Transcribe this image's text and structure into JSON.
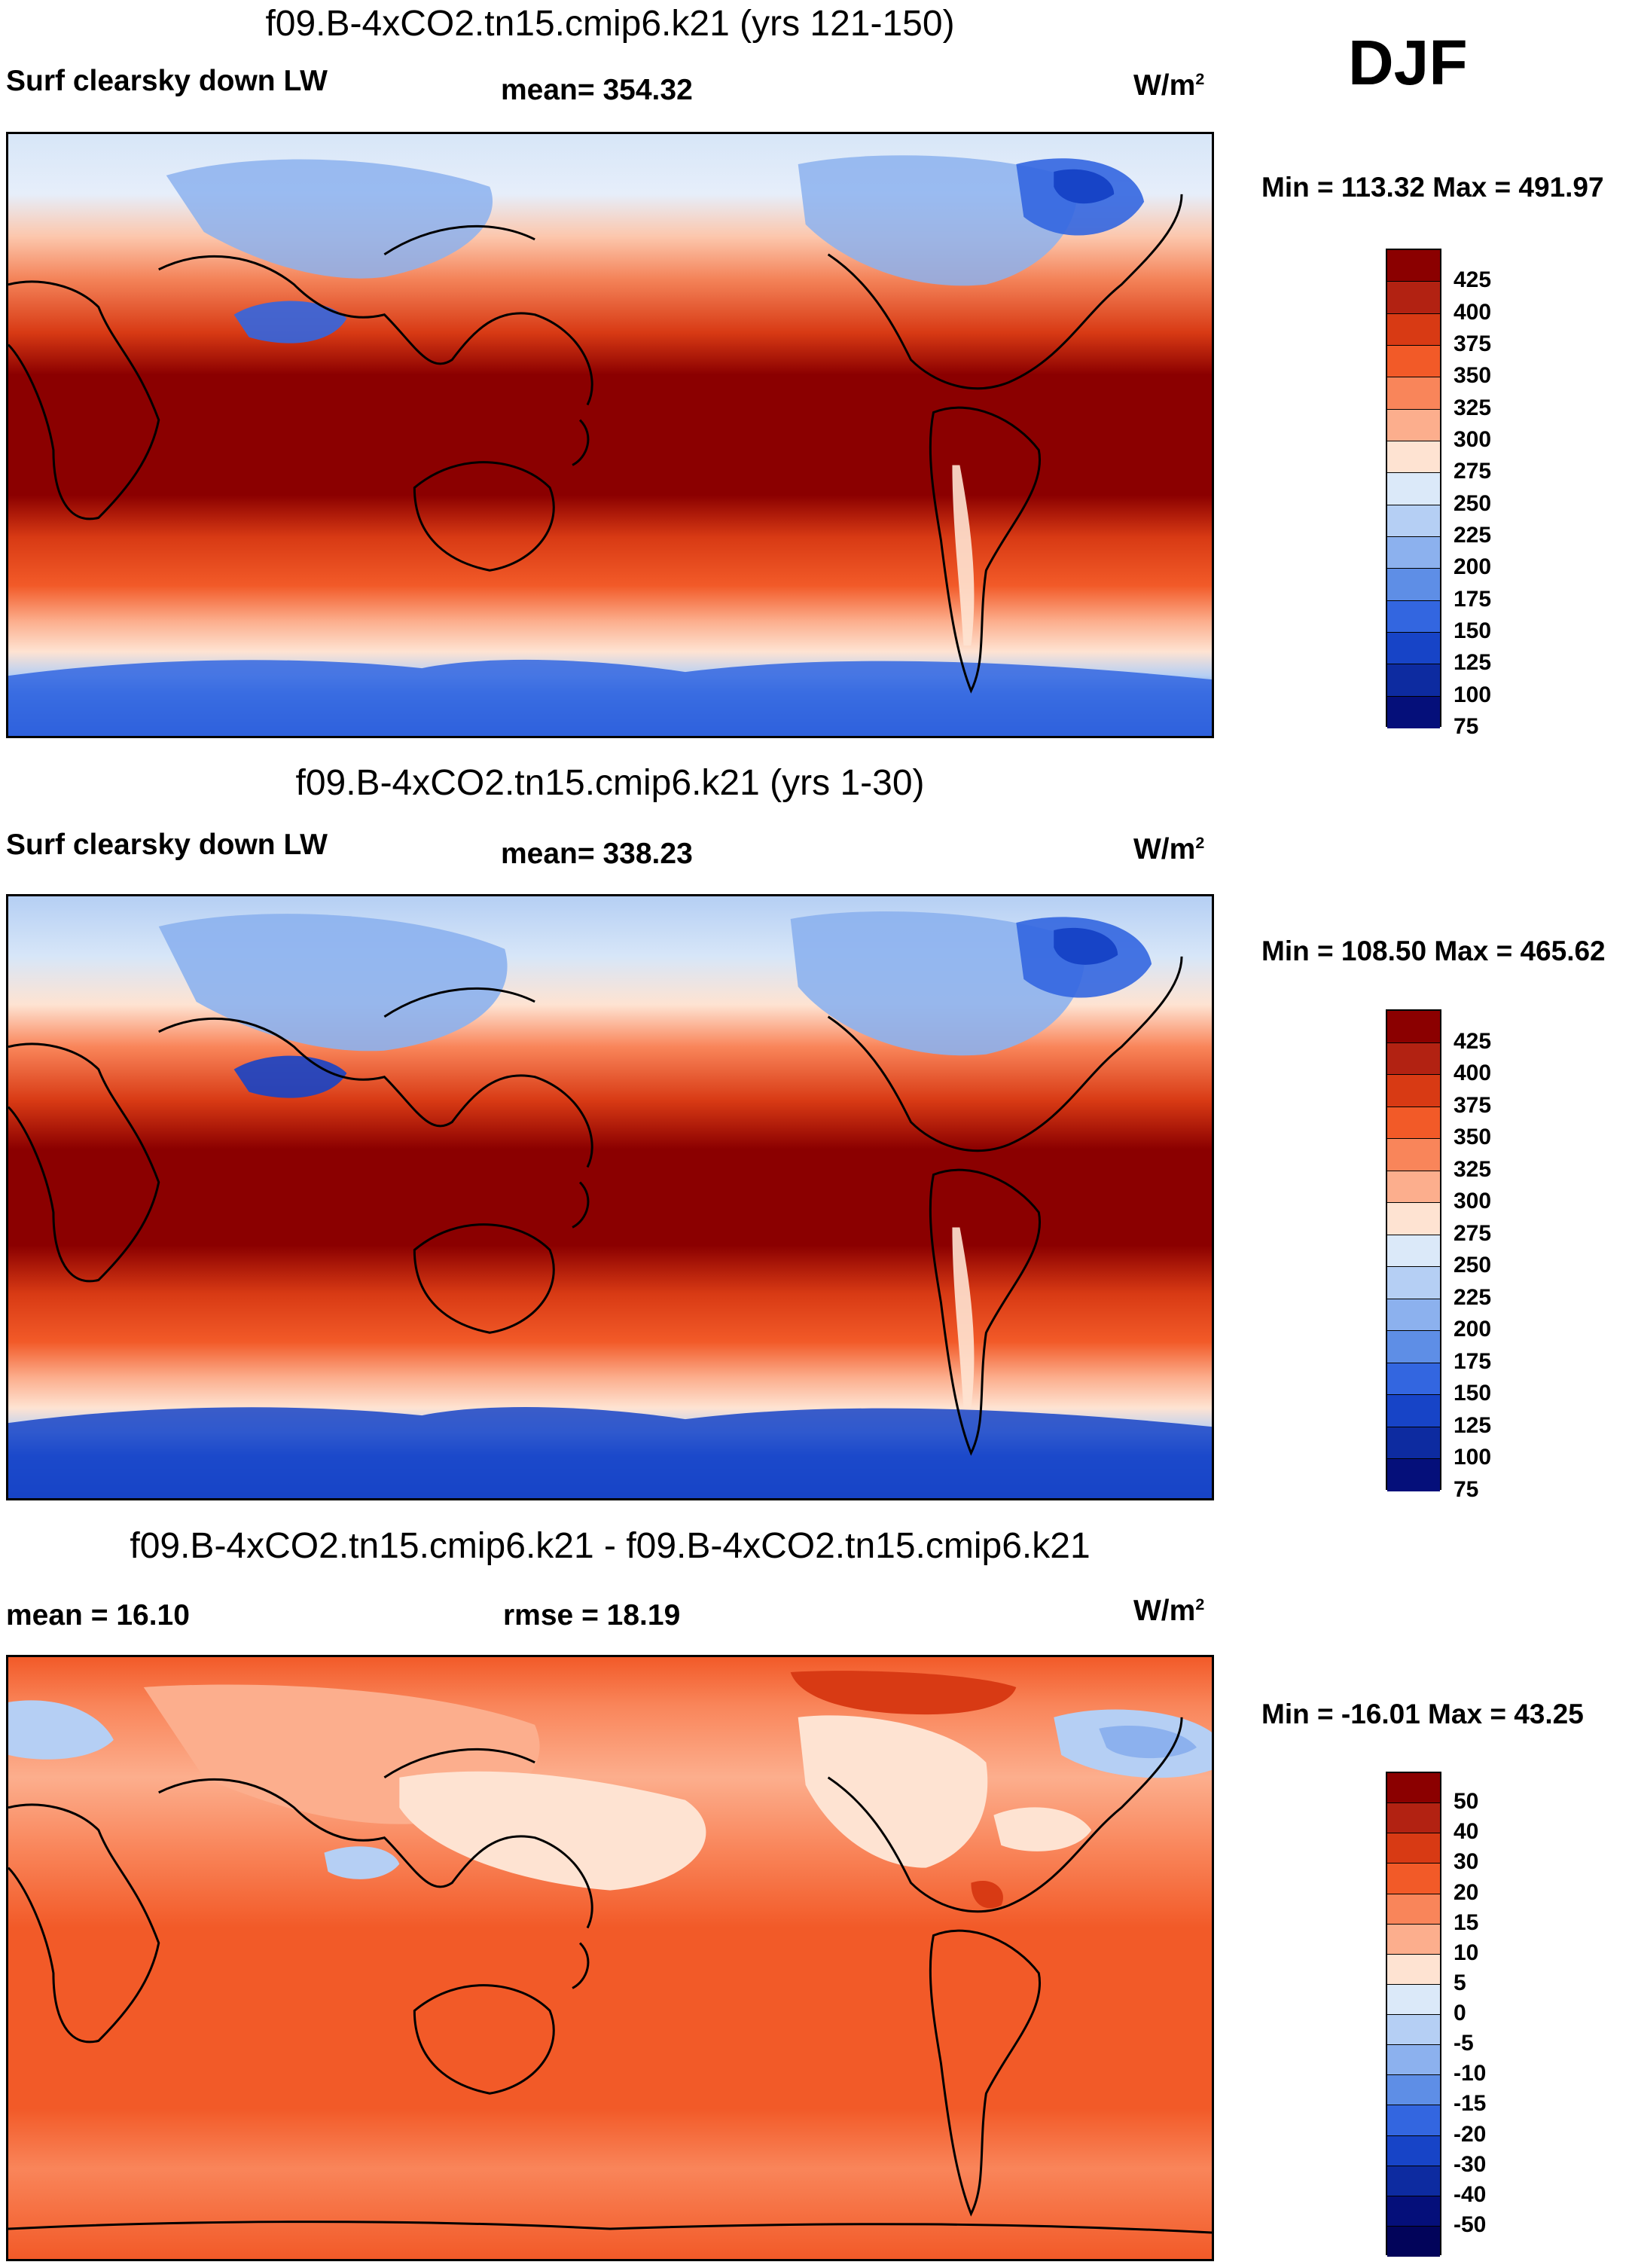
{
  "season": "DJF",
  "panels": [
    {
      "title": "f09.B-4xCO2.tn15.cmip6.k21 (yrs 121-150)",
      "left_label": "Surf clearsky down LW",
      "center_label": "mean= 354.32",
      "units": "W/m",
      "units_sup": "2",
      "minmax": "Min = 113.32 Max = 491.97",
      "colorbar": {
        "colors": [
          "#8b0000",
          "#b22212",
          "#d83a14",
          "#f25a28",
          "#f9855a",
          "#fcae8d",
          "#fee3d2",
          "#dbe9f9",
          "#b5cff4",
          "#8cb1ee",
          "#5e8ee6",
          "#3366e0",
          "#1744c7",
          "#0d2ba0",
          "#050f7a"
        ],
        "labels": [
          "425",
          "400",
          "375",
          "350",
          "325",
          "300",
          "275",
          "250",
          "225",
          "200",
          "175",
          "150",
          "125",
          "100",
          "75"
        ]
      }
    },
    {
      "title": "f09.B-4xCO2.tn15.cmip6.k21 (yrs 1-30)",
      "left_label": "Surf clearsky down LW",
      "center_label": "mean= 338.23",
      "units": "W/m",
      "units_sup": "2",
      "minmax": "Min = 108.50 Max = 465.62",
      "colorbar": {
        "colors": [
          "#8b0000",
          "#b22212",
          "#d83a14",
          "#f25a28",
          "#f9855a",
          "#fcae8d",
          "#fee3d2",
          "#dbe9f9",
          "#b5cff4",
          "#8cb1ee",
          "#5e8ee6",
          "#3366e0",
          "#1744c7",
          "#0d2ba0",
          "#050f7a"
        ],
        "labels": [
          "425",
          "400",
          "375",
          "350",
          "325",
          "300",
          "275",
          "250",
          "225",
          "200",
          "175",
          "150",
          "125",
          "100",
          "75"
        ]
      }
    },
    {
      "title": "f09.B-4xCO2.tn15.cmip6.k21 - f09.B-4xCO2.tn15.cmip6.k21",
      "left_label": "mean =  16.10",
      "center_label": "rmse =  18.19",
      "units": "W/m",
      "units_sup": "2",
      "minmax": "Min = -16.01 Max =  43.25",
      "colorbar": {
        "colors": [
          "#8b0000",
          "#b22212",
          "#d83a14",
          "#f25a28",
          "#f9855a",
          "#fcae8d",
          "#fee3d2",
          "#dbe9f9",
          "#b5cff4",
          "#8cb1ee",
          "#5e8ee6",
          "#3366e0",
          "#1744c7",
          "#0d2ba0",
          "#050f7a",
          "#02045a"
        ],
        "labels": [
          "50",
          "40",
          "30",
          "20",
          "15",
          "10",
          "5",
          "0",
          "-5",
          "-10",
          "-15",
          "-20",
          "-30",
          "-40",
          "-50"
        ]
      }
    }
  ]
}
